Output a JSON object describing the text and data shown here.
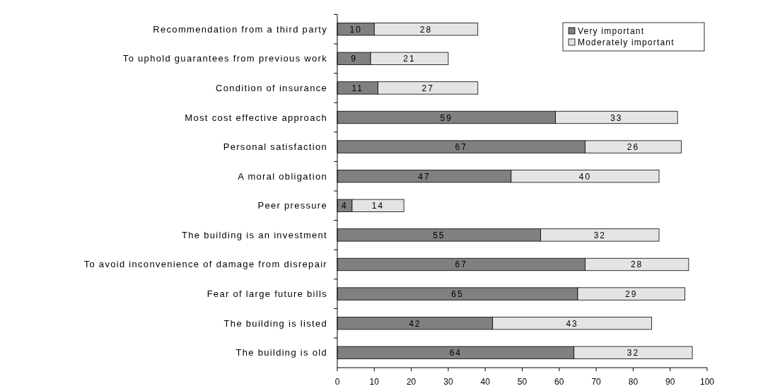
{
  "chart_data": {
    "type": "bar",
    "orientation": "horizontal",
    "stacked": true,
    "categories": [
      "Recommendation from a third party",
      "To uphold guarantees from previous work",
      "Condition of insurance",
      "Most cost effective approach",
      "Personal satisfaction",
      "A moral obligation",
      "Peer pressure",
      "The building is an investment",
      "To avoid inconvenience of damage from disrepair",
      "Fear of large future bills",
      "The building is listed",
      "The building is old"
    ],
    "series": [
      {
        "name": "Very important",
        "color": "#808080",
        "values": [
          10,
          9,
          11,
          59,
          67,
          47,
          4,
          55,
          67,
          65,
          42,
          64
        ]
      },
      {
        "name": "Moderately important",
        "color": "#e4e4e4",
        "values": [
          28,
          21,
          27,
          33,
          26,
          40,
          14,
          32,
          28,
          29,
          43,
          32
        ]
      }
    ],
    "xlim": [
      0,
      100
    ],
    "xticks": [
      0,
      10,
      20,
      30,
      40,
      50,
      60,
      70,
      80,
      90,
      100
    ],
    "data_labels": true,
    "legend": "top right",
    "grid": false
  }
}
